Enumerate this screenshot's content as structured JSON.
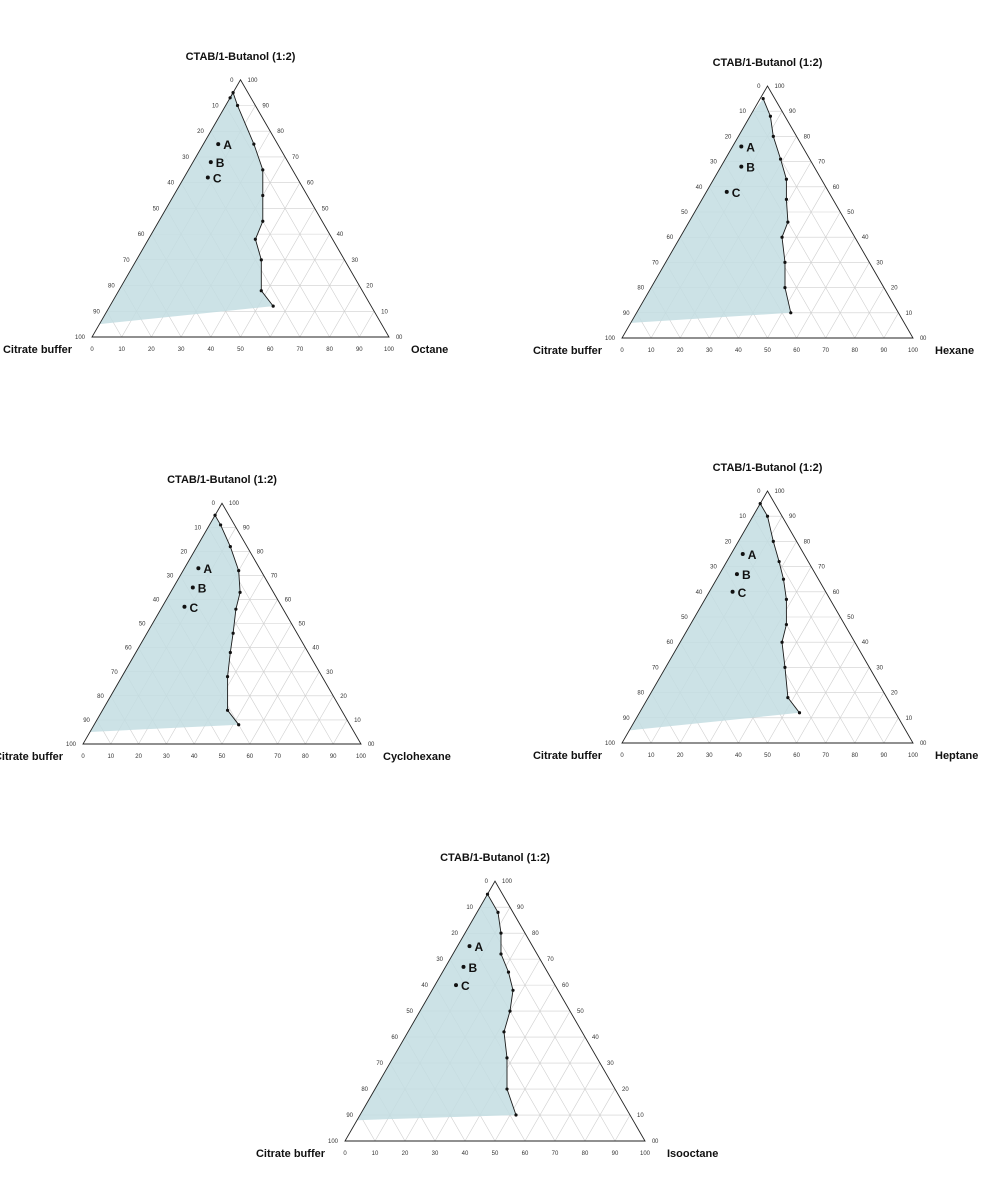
{
  "colors": {
    "region": "#c3dde2",
    "frame": "#222222",
    "grid": "#cfcfcf",
    "points": "#111111"
  },
  "ticks": [
    "0",
    "10",
    "20",
    "30",
    "40",
    "50",
    "60",
    "70",
    "80",
    "90",
    "100"
  ],
  "chart_data": [
    {
      "type": "scatter",
      "subtype": "ternary",
      "title": "CTAB/1-Butanol (1:2)",
      "components": {
        "top": "CTAB/1-Butanol (1:2)",
        "left": "Citrate buffer",
        "right": "Octane"
      },
      "region_boundary": [
        [
          12,
          33,
          55
        ],
        [
          18,
          34,
          48
        ],
        [
          30,
          28,
          42
        ],
        [
          38,
          26,
          36
        ],
        [
          45,
          20,
          35
        ],
        [
          55,
          15,
          30
        ],
        [
          65,
          10,
          25
        ],
        [
          75,
          8,
          17
        ],
        [
          90,
          6,
          4
        ],
        [
          95,
          5,
          0
        ],
        [
          93,
          7,
          0
        ],
        [
          60,
          40,
          0
        ],
        [
          53,
          47,
          0
        ],
        [
          41,
          59,
          0
        ],
        [
          10,
          90,
          0
        ],
        [
          5,
          95,
          0
        ]
      ],
      "samples": [
        {
          "label": "C",
          "x": [
            62,
            30,
            8
          ]
        },
        {
          "label": "B",
          "x": [
            68,
            26,
            6
          ]
        },
        {
          "label": "A",
          "x": [
            75,
            20,
            5
          ]
        }
      ]
    },
    {
      "type": "scatter",
      "subtype": "ternary",
      "title": "CTAB/1-Butanol (1:2)",
      "components": {
        "top": "CTAB/1-Butanol (1:2)",
        "left": "Citrate buffer",
        "right": "Hexane"
      },
      "region_boundary": [
        [
          10,
          37,
          53
        ],
        [
          20,
          34,
          46
        ],
        [
          30,
          29,
          41
        ],
        [
          40,
          25,
          35
        ],
        [
          46,
          20,
          34
        ],
        [
          55,
          16,
          29
        ],
        [
          63,
          12,
          25
        ],
        [
          71,
          10,
          19
        ],
        [
          80,
          8,
          12
        ],
        [
          88,
          5,
          7
        ],
        [
          95,
          4,
          1
        ],
        [
          88,
          12,
          0
        ],
        [
          65,
          35,
          0
        ],
        [
          58,
          42,
          0
        ],
        [
          50,
          50,
          0
        ],
        [
          14,
          86,
          0
        ],
        [
          6,
          94,
          0
        ]
      ],
      "samples": [
        {
          "label": "C",
          "x": [
            58,
            35,
            7
          ]
        },
        {
          "label": "B",
          "x": [
            68,
            25,
            7
          ]
        },
        {
          "label": "A",
          "x": [
            76,
            21,
            3
          ]
        }
      ]
    },
    {
      "type": "scatter",
      "subtype": "ternary",
      "title": "CTAB/1-Butanol (1:2)",
      "components": {
        "top": "CTAB/1-Butanol (1:2)",
        "left": "Citrate buffer",
        "right": "Cyclohexane"
      },
      "region_boundary": [
        [
          8,
          40,
          52
        ],
        [
          14,
          41,
          45
        ],
        [
          28,
          34,
          38
        ],
        [
          38,
          28,
          34
        ],
        [
          46,
          23,
          31
        ],
        [
          56,
          17,
          27
        ],
        [
          63,
          12,
          25
        ],
        [
          72,
          8,
          20
        ],
        [
          82,
          6,
          12
        ],
        [
          91,
          5,
          4
        ],
        [
          95,
          5,
          0
        ],
        [
          87,
          13,
          0
        ],
        [
          60,
          40,
          0
        ],
        [
          54,
          46,
          0
        ],
        [
          39,
          61,
          0
        ],
        [
          10,
          90,
          0
        ],
        [
          5,
          95,
          0
        ]
      ],
      "samples": [
        {
          "label": "C",
          "x": [
            57,
            35,
            8
          ]
        },
        {
          "label": "B",
          "x": [
            65,
            28,
            7
          ]
        },
        {
          "label": "A",
          "x": [
            73,
            22,
            5
          ]
        }
      ]
    },
    {
      "type": "scatter",
      "subtype": "ternary",
      "title": "CTAB/1-Butanol (1:2)",
      "components": {
        "top": "CTAB/1-Butanol (1:2)",
        "left": "Citrate buffer",
        "right": "Heptane"
      },
      "region_boundary": [
        [
          12,
          33,
          55
        ],
        [
          18,
          34,
          48
        ],
        [
          30,
          29,
          41
        ],
        [
          40,
          25,
          35
        ],
        [
          47,
          20,
          33
        ],
        [
          57,
          15,
          28
        ],
        [
          65,
          12,
          23
        ],
        [
          72,
          10,
          18
        ],
        [
          80,
          8,
          12
        ],
        [
          90,
          5,
          5
        ],
        [
          95,
          5,
          0
        ],
        [
          86,
          14,
          0
        ],
        [
          64,
          36,
          0
        ],
        [
          58,
          42,
          0
        ],
        [
          48,
          52,
          0
        ],
        [
          13,
          87,
          0
        ],
        [
          5,
          95,
          0
        ]
      ],
      "samples": [
        {
          "label": "C",
          "x": [
            60,
            32,
            8
          ]
        },
        {
          "label": "B",
          "x": [
            67,
            27,
            6
          ]
        },
        {
          "label": "A",
          "x": [
            75,
            21,
            4
          ]
        }
      ]
    },
    {
      "type": "scatter",
      "subtype": "ternary",
      "title": "CTAB/1-Butanol (1:2)",
      "components": {
        "top": "CTAB/1-Butanol (1:2)",
        "left": "Citrate buffer",
        "right": "Isooctane"
      },
      "region_boundary": [
        [
          10,
          38,
          52
        ],
        [
          20,
          36,
          44
        ],
        [
          32,
          30,
          38
        ],
        [
          42,
          26,
          32
        ],
        [
          50,
          20,
          30
        ],
        [
          58,
          15,
          27
        ],
        [
          65,
          13,
          22
        ],
        [
          72,
          12,
          16
        ],
        [
          80,
          8,
          12
        ],
        [
          88,
          5,
          7
        ],
        [
          95,
          5,
          0
        ],
        [
          87,
          13,
          0
        ],
        [
          60,
          40,
          0
        ],
        [
          52,
          48,
          0
        ],
        [
          47,
          53,
          0
        ],
        [
          18,
          82,
          0
        ],
        [
          8,
          92,
          0
        ]
      ],
      "samples": [
        {
          "label": "C",
          "x": [
            60,
            33,
            7
          ]
        },
        {
          "label": "B",
          "x": [
            67,
            27,
            6
          ]
        },
        {
          "label": "A",
          "x": [
            75,
            21,
            4
          ]
        }
      ]
    }
  ]
}
